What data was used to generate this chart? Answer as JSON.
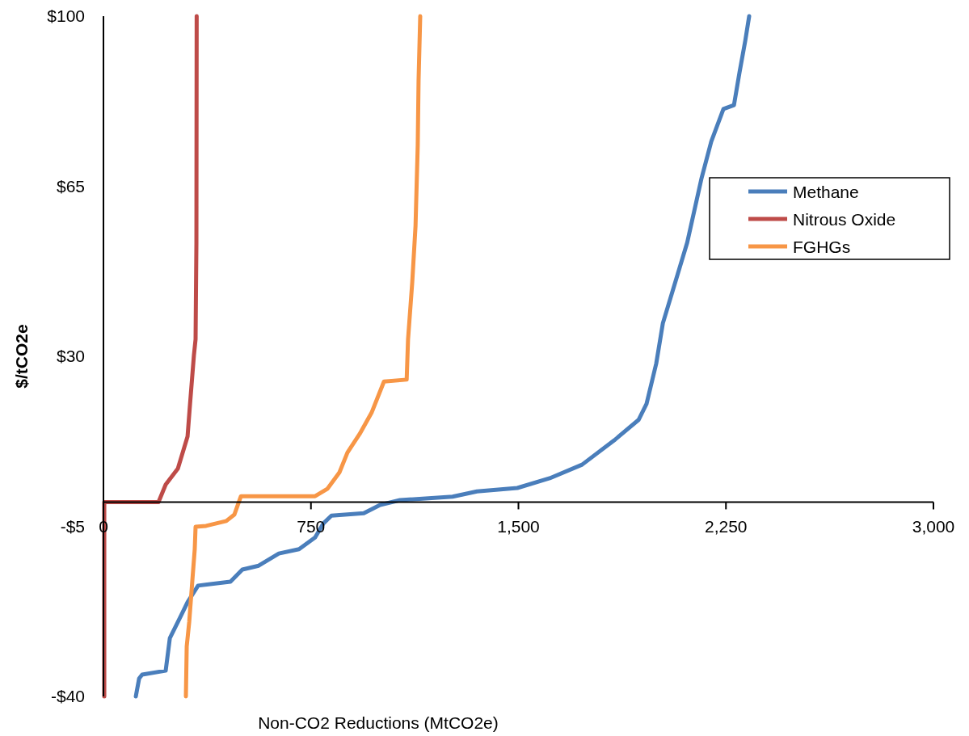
{
  "chart_data": {
    "type": "line",
    "xlabel": "Non-CO2 Reductions (MtCO2e)",
    "ylabel": "$/tCO2e",
    "xlim": [
      0,
      3000
    ],
    "ylim": [
      -40,
      100
    ],
    "xticks": [
      0,
      750,
      {
        "value": 1500,
        "label": "1,500"
      },
      {
        "value": 2250,
        "label": "2,250"
      },
      {
        "value": 3000,
        "label": "3,000"
      }
    ],
    "yticks": [
      {
        "value": -40,
        "label": "-$40"
      },
      {
        "value": -5,
        "label": "-$5"
      },
      {
        "value": 30,
        "label": "$30"
      },
      {
        "value": 65,
        "label": "$65"
      },
      {
        "value": 100,
        "label": "$100"
      }
    ],
    "grid": false,
    "legend": "right",
    "marker": "none",
    "line_style": "solid",
    "series": [
      {
        "name": "Methane",
        "color": "#4a7ebb",
        "x": [
          117,
          129,
          140,
          225,
          240,
          269,
          304,
          342,
          459,
          502,
          561,
          634,
          707,
          765,
          795,
          824,
          941,
          1000,
          1072,
          1262,
          1350,
          1496,
          1613,
          1730,
          1846,
          1934,
          1963,
          1998,
          2022,
          2066,
          2110,
          2162,
          2197,
          2241,
          2279,
          2299,
          2320,
          2334
        ],
        "values": [
          -40,
          -36.3,
          -35.5,
          -34.7,
          -28,
          -24.7,
          -20.6,
          -17.2,
          -16.4,
          -13.9,
          -13.1,
          -10.6,
          -9.7,
          -7.3,
          -4.4,
          -2.8,
          -2.3,
          -0.6,
          0.4,
          1.1,
          2.2,
          2.9,
          4.9,
          7.7,
          12.7,
          16.9,
          20.2,
          28.5,
          36.8,
          45.1,
          53.4,
          66.7,
          74.2,
          80.9,
          81.7,
          88.4,
          95,
          100
        ]
      },
      {
        "name": "Nitrous Oxide",
        "color": "#be4b48",
        "x": [
          3,
          3,
          199,
          225,
          269,
          304,
          313,
          327,
          333,
          336,
          337
        ],
        "values": [
          -40,
          0,
          0,
          3.6,
          6.9,
          13.5,
          20.2,
          30.2,
          33.5,
          53.4,
          100
        ]
      },
      {
        "name": "FGHGs",
        "color": "#f79646",
        "x": [
          298,
          301,
          310,
          321,
          330,
          333,
          371,
          444,
          473,
          497,
          765,
          809,
          853,
          882,
          926,
          970,
          1014,
          1096,
          1101,
          1116,
          1128,
          1136,
          1139,
          1145
        ],
        "values": [
          -40,
          -29.7,
          -24.7,
          -16.4,
          -9.7,
          -5.1,
          -4.9,
          -3.9,
          -2.6,
          1.2,
          1.2,
          2.7,
          6.1,
          10.2,
          14,
          18.5,
          24.8,
          25.2,
          33.5,
          45.1,
          56.8,
          73.4,
          86.7,
          100
        ]
      }
    ]
  }
}
